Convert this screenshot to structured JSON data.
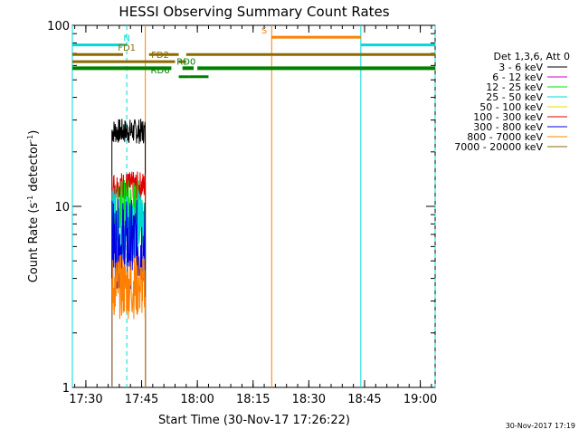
{
  "chart_data": {
    "type": "line",
    "title": "HESSI Observing Summary Count Rates",
    "xlabel": "Start Time (30-Nov-17 17:26:22)",
    "ylabel_main": "Count Rate (s",
    "ylabel_sup1": "-1",
    "ylabel_mid": " detector",
    "ylabel_sup2": "-1",
    "ylabel_end": ")",
    "yscale": "log",
    "ylim": [
      1,
      100
    ],
    "xlim": [
      "17:26:22",
      "19:04:00"
    ],
    "x_ticks": [
      "17:30",
      "17:45",
      "18:00",
      "18:15",
      "18:30",
      "18:45",
      "19:00"
    ],
    "y_ticks": [
      "1",
      "10",
      "100"
    ],
    "footer": "30-Nov-2017 17:19",
    "legend": {
      "placement": "right",
      "header": "Det 1,3,6, Att 0",
      "entries": [
        {
          "label": "3 - 6 keV",
          "color": "#000000"
        },
        {
          "label": "6 - 12 keV",
          "color": "#d000d0"
        },
        {
          "label": "12 - 25 keV",
          "color": "#00e000"
        },
        {
          "label": "25 - 50 keV",
          "color": "#00d8d8"
        },
        {
          "label": "50 - 100 keV",
          "color": "#e0e000"
        },
        {
          "label": "100 - 300 keV",
          "color": "#e00000"
        },
        {
          "label": "300 - 800 keV",
          "color": "#0000e0"
        },
        {
          "label": "800 - 7000 keV",
          "color": "#ff8000"
        },
        {
          "label": "7000 - 20000 keV",
          "color": "#8b6b00"
        }
      ]
    },
    "series": [
      {
        "name": "3 - 6 keV",
        "color": "#000000",
        "t_start": "17:37",
        "t_end": "17:46",
        "base": 26,
        "jitter": 0.07
      },
      {
        "name": "100 - 300 keV",
        "color": "#e00000",
        "t_start": "17:37",
        "t_end": "17:46",
        "base": 13,
        "jitter": 0.08
      },
      {
        "name": "12 - 25 keV",
        "color": "#00e000",
        "t_start": "17:37",
        "t_end": "17:46",
        "base": 9.5,
        "jitter": 0.18
      },
      {
        "name": "25 - 50 keV",
        "color": "#00d8d8",
        "t_start": "17:37",
        "t_end": "17:46",
        "base": 8.0,
        "jitter": 0.2
      },
      {
        "name": "300 - 800 keV",
        "color": "#0000e0",
        "t_start": "17:37",
        "t_end": "17:46",
        "base": 6.2,
        "jitter": 0.25
      },
      {
        "name": "800 - 7000 keV",
        "color": "#ff8000",
        "t_start": "17:37",
        "t_end": "17:46",
        "base": 3.6,
        "jitter": 0.18
      }
    ],
    "flag_bars": [
      {
        "label": "N",
        "color": "#00d8d8",
        "segments": [
          [
            "17:26:22",
            "17:41"
          ],
          [
            "18:44",
            "19:04"
          ]
        ],
        "y": 78,
        "width": 3,
        "label_at": "17:41"
      },
      {
        "label": "S",
        "color": "#ff8000",
        "segments": [
          [
            "18:20",
            "18:44"
          ]
        ],
        "y": 86,
        "width": 3,
        "label_at": "18:18"
      },
      {
        "label": "FD1",
        "color": "#8b6b00",
        "segments": [
          [
            "17:26:22",
            "17:40"
          ],
          [
            "17:47",
            "17:55"
          ],
          [
            "17:57",
            "19:04"
          ]
        ],
        "y": 69,
        "width": 3,
        "label_at": "17:41"
      },
      {
        "label": "FD2",
        "color": "#8b6b00",
        "segments": [
          [
            "17:26:22",
            "17:54"
          ],
          [
            "17:55",
            "17:57"
          ]
        ],
        "y": 63,
        "width": 3,
        "label_at": "17:50"
      },
      {
        "label": "RD0",
        "color": "#008000",
        "segments": [
          [
            "17:26:22",
            "17:53"
          ],
          [
            "17:56",
            "17:59"
          ],
          [
            "18:00",
            "19:04"
          ]
        ],
        "y": 58,
        "width": 4,
        "label_at": "17:57"
      },
      {
        "label": "RD6",
        "color": "#008000",
        "segments": [
          [
            "17:55",
            "17:58"
          ],
          [
            "17:58",
            "18:03"
          ]
        ],
        "y": 52,
        "width": 3,
        "label_at": "17:50"
      }
    ],
    "vlines": [
      {
        "t": "17:26:22",
        "color": "#00d8d8",
        "style": "solid"
      },
      {
        "t": "17:41",
        "color": "#00d8d8",
        "style": "dashed"
      },
      {
        "t": "17:46",
        "color": "#ff8000",
        "style": "solid"
      },
      {
        "t": "18:20",
        "color": "#ff8000",
        "style": "solid"
      },
      {
        "t": "18:44",
        "color": "#00d8d8",
        "style": "solid"
      },
      {
        "t": "19:04",
        "color": "#00d8d8",
        "style": "dashed"
      }
    ]
  }
}
